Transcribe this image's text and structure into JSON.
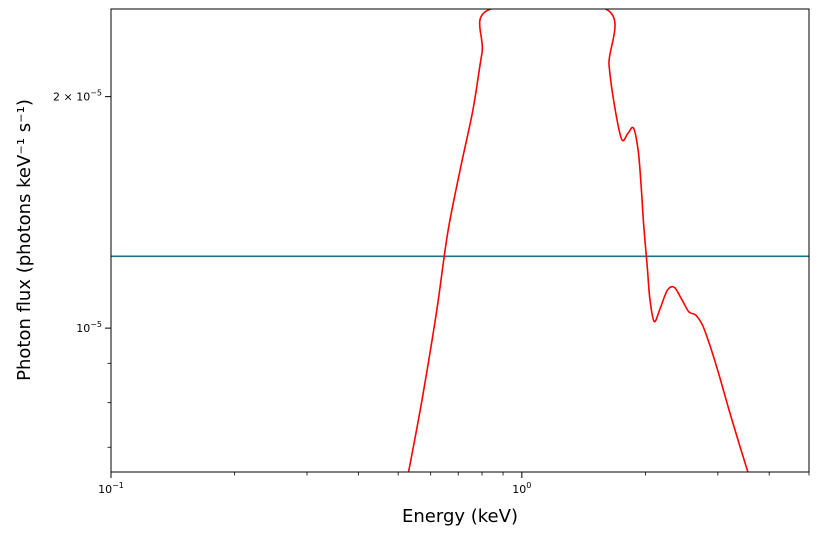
{
  "chart_data": {
    "type": "line",
    "xlabel": "Energy (keV)",
    "ylabel": "Photon flux (photons keV⁻¹ s⁻¹)",
    "xscale": "log",
    "yscale": "log",
    "xlim": [
      0.1,
      5.0
    ],
    "ylim": [
      6.5e-06,
      2.6e-05
    ],
    "grid": false,
    "x_ticks": [
      {
        "value": 0.1,
        "base": "10",
        "exp": "−1"
      },
      {
        "value": 1.0,
        "base": "10",
        "exp": "0"
      }
    ],
    "y_ticks": [
      {
        "value": 1e-05,
        "mant": "",
        "base": "10",
        "exp": "−5"
      },
      {
        "value": 2e-05,
        "mant": "2 × ",
        "base": "10",
        "exp": "−5"
      }
    ],
    "series": [
      {
        "color": "#1f6f8b",
        "x": [
          0.1,
          5.0
        ],
        "y": [
          1.24e-05,
          1.24e-05
        ]
      },
      {
        "color": "#ff0000",
        "x": [
          0.53,
          0.57,
          0.62,
          0.66,
          0.71,
          0.76,
          0.8,
          0.84,
          1.6,
          1.63,
          1.68,
          1.75,
          1.81,
          1.87,
          1.92,
          1.95,
          1.98,
          2.02,
          2.05,
          2.1,
          2.17,
          2.26,
          2.35,
          2.45,
          2.55,
          2.65,
          2.75,
          2.85,
          3.0,
          3.2,
          3.4,
          3.55
        ],
        "y": [
          6.5e-06,
          8e-06,
          1.05e-05,
          1.33e-05,
          1.62e-05,
          1.92e-05,
          2.28e-05,
          2.6e-05,
          2.6e-05,
          2.2e-05,
          1.95e-05,
          1.76e-05,
          1.79e-05,
          1.82e-05,
          1.7e-05,
          1.54e-05,
          1.36e-05,
          1.2e-05,
          1.09e-05,
          1.02e-05,
          1.06e-05,
          1.12e-05,
          1.13e-05,
          1.09e-05,
          1.05e-05,
          1.04e-05,
          1.01e-05,
          9.6e-06,
          8.8e-06,
          7.8e-06,
          7e-06,
          6.5e-06
        ]
      }
    ]
  }
}
